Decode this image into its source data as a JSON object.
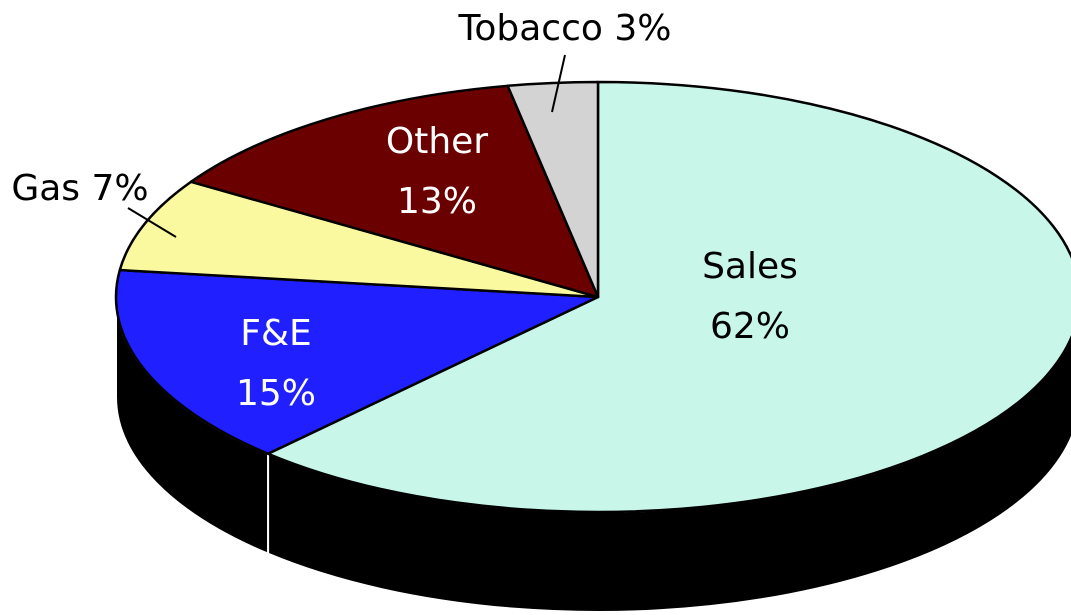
{
  "chart_data": {
    "type": "pie",
    "categories": [
      "Sales",
      "F&E",
      "Gas",
      "Other",
      "Tobacco"
    ],
    "values": [
      62,
      15,
      7,
      13,
      3
    ],
    "value_labels": [
      "62%",
      "15%",
      "7%",
      "13%",
      "3%"
    ],
    "colors": [
      "#c8f7ea",
      "#1f1fff",
      "#fbf9a0",
      "#6b0000",
      "#d3d3d3"
    ]
  }
}
